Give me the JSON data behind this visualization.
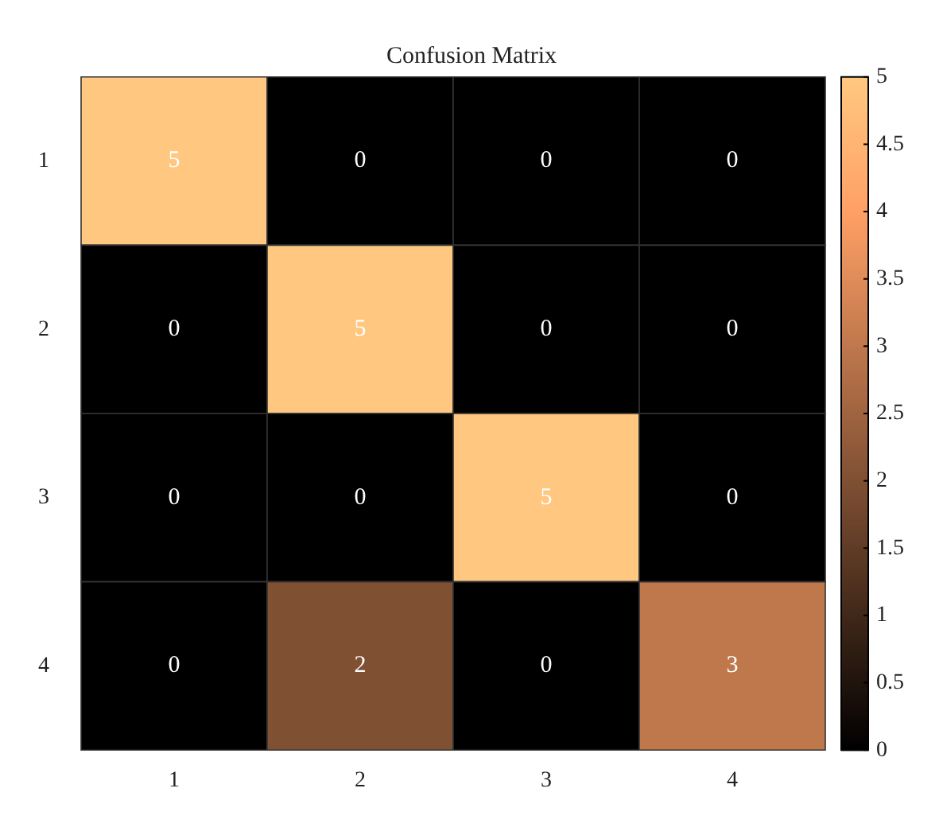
{
  "chart_data": {
    "type": "heatmap",
    "title": "Confusion Matrix",
    "categories": [
      "1",
      "2",
      "3",
      "4"
    ],
    "y_categories": [
      "1",
      "2",
      "3",
      "4"
    ],
    "cells": [
      [
        5,
        0,
        0,
        0
      ],
      [
        0,
        5,
        0,
        0
      ],
      [
        0,
        0,
        5,
        0
      ],
      [
        0,
        2,
        0,
        3
      ]
    ],
    "data_labels": true,
    "clim": [
      0,
      5
    ],
    "cticks": [
      0,
      0.5,
      1,
      1.5,
      2,
      2.5,
      3,
      3.5,
      4,
      4.5,
      5
    ]
  }
}
